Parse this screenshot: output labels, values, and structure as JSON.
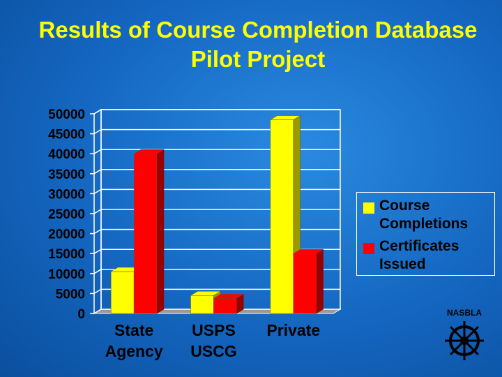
{
  "chart_data": {
    "type": "bar3d",
    "title": "Results of Course Completion Database Pilot Project",
    "categories": [
      "State Agency",
      "USPS USCG",
      "Private"
    ],
    "series": [
      {
        "name": "Course Completions",
        "color": "#ffff00",
        "values": [
          10500,
          4500,
          48500
        ]
      },
      {
        "name": "Certificates Issued",
        "color": "#ff0000",
        "values": [
          40000,
          3800,
          15000
        ]
      }
    ],
    "ylim": [
      0,
      50000
    ],
    "yticks": [
      0,
      5000,
      10000,
      15000,
      20000,
      25000,
      30000,
      35000,
      40000,
      45000,
      50000
    ],
    "grid": true,
    "legend": "right"
  },
  "logo": "NASBLA"
}
